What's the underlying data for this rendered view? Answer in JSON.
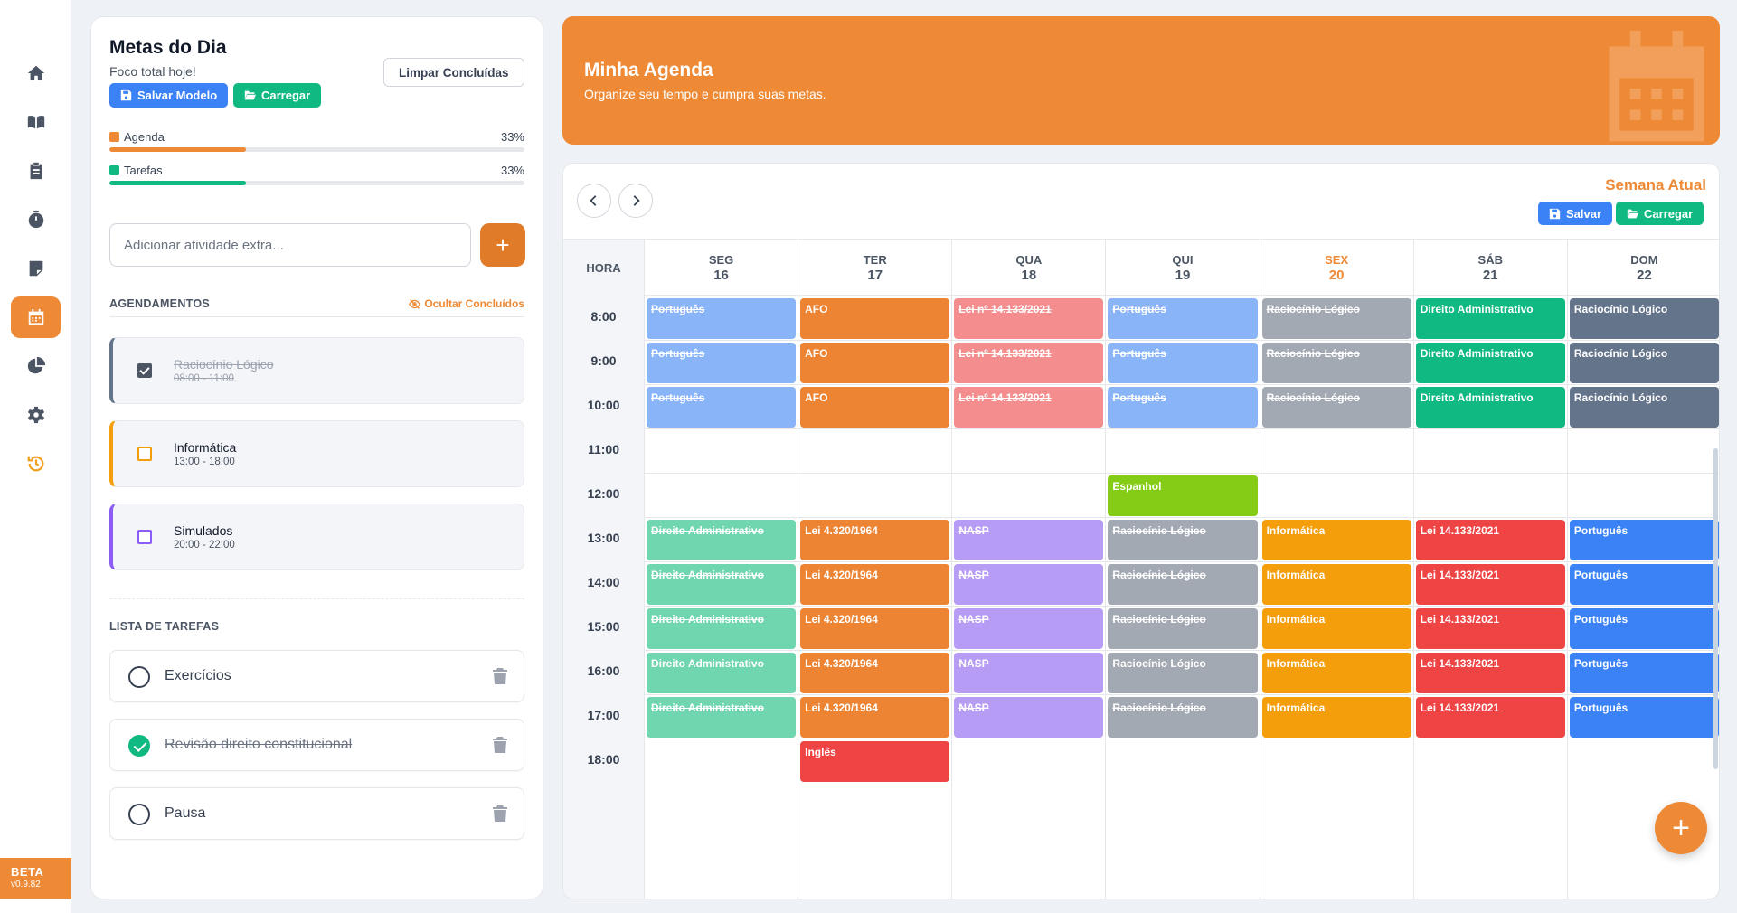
{
  "colors": {
    "accent": "#ee8a36",
    "blue": "#3b82f6",
    "green": "#10b981"
  },
  "sidebar": {
    "items": [
      {
        "name": "home",
        "icon": "home-icon"
      },
      {
        "name": "book",
        "icon": "book-icon"
      },
      {
        "name": "clipboard",
        "icon": "clipboard-icon"
      },
      {
        "name": "stopwatch",
        "icon": "stopwatch-icon"
      },
      {
        "name": "note",
        "icon": "note-icon"
      },
      {
        "name": "calendar",
        "icon": "calendar-icon",
        "active": true
      },
      {
        "name": "chart",
        "icon": "pie-chart-icon"
      },
      {
        "name": "settings",
        "icon": "gear-icon"
      },
      {
        "name": "history",
        "icon": "history-icon"
      }
    ],
    "beta_label": "BETA",
    "version": "v0.9.82"
  },
  "goals": {
    "title": "Metas do Dia",
    "subtitle": "Foco total hoje!",
    "save_model_label": "Salvar Modelo",
    "load_label": "Carregar",
    "clear_done_label": "Limpar Concluídas",
    "progress": [
      {
        "label": "Agenda",
        "percent_text": "33%",
        "percent": 33,
        "color": "#ee8a36"
      },
      {
        "label": "Tarefas",
        "percent_text": "33%",
        "percent": 33,
        "color": "#10b981"
      }
    ],
    "extra_placeholder": "Adicionar atividade extra...",
    "appointments_title": "AGENDAMENTOS",
    "hide_done_label": "Ocultar Concluídos",
    "appointments": [
      {
        "name": "Raciocínio Lógico",
        "time": "08:00 - 11:00",
        "done": true,
        "color": "#64748b"
      },
      {
        "name": "Informática",
        "time": "13:00 - 18:00",
        "done": false,
        "color": "#f59e0b"
      },
      {
        "name": "Simulados",
        "time": "20:00 - 22:00",
        "done": false,
        "color": "#8b5cf6"
      }
    ],
    "tasks_title": "LISTA DE TAREFAS",
    "tasks": [
      {
        "name": "Exercícios",
        "done": false
      },
      {
        "name": "Revisão direito constitucional",
        "done": true
      },
      {
        "name": "Pausa",
        "done": false
      }
    ]
  },
  "banner": {
    "title": "Minha Agenda",
    "subtitle": "Organize seu tempo e cumpra suas metas."
  },
  "calendar": {
    "week_label": "Semana Atual",
    "save_label": "Salvar",
    "load_label": "Carregar",
    "hour_header": "HORA",
    "days": [
      {
        "name": "SEG",
        "date": "16"
      },
      {
        "name": "TER",
        "date": "17"
      },
      {
        "name": "QUA",
        "date": "18"
      },
      {
        "name": "QUI",
        "date": "19"
      },
      {
        "name": "SEX",
        "date": "20",
        "today": true
      },
      {
        "name": "SÁB",
        "date": "21"
      },
      {
        "name": "DOM",
        "date": "22"
      }
    ],
    "hours": [
      "8:00",
      "9:00",
      "10:00",
      "11:00",
      "12:00",
      "13:00",
      "14:00",
      "15:00",
      "16:00",
      "17:00",
      "18:00"
    ],
    "events": [
      {
        "day": 0,
        "start": 0,
        "span": 3,
        "label": "Português",
        "color": "#8ab4f8",
        "done": true
      },
      {
        "day": 1,
        "start": 0,
        "span": 3,
        "label": "AFO",
        "color": "#ed8433",
        "done": false
      },
      {
        "day": 2,
        "start": 0,
        "span": 3,
        "label": "Lei nº 14.133/2021",
        "color": "#f48d8d",
        "done": true
      },
      {
        "day": 3,
        "start": 0,
        "span": 3,
        "label": "Português",
        "color": "#8ab4f8",
        "done": true
      },
      {
        "day": 4,
        "start": 0,
        "span": 3,
        "label": "Raciocínio Lógico",
        "color": "#a3a9b3",
        "done": true
      },
      {
        "day": 5,
        "start": 0,
        "span": 3,
        "label": "Direito Administrativo",
        "color": "#10b981",
        "done": false
      },
      {
        "day": 6,
        "start": 0,
        "span": 3,
        "label": "Raciocínio Lógico",
        "color": "#64748b",
        "done": false
      },
      {
        "day": 3,
        "start": 4,
        "span": 1,
        "label": "Espanhol",
        "color": "#84cc16",
        "done": false
      },
      {
        "day": 0,
        "start": 5,
        "span": 5,
        "label": "Direito Administrativo",
        "color": "#6fd6b0",
        "done": true
      },
      {
        "day": 1,
        "start": 5,
        "span": 5,
        "label": "Lei 4.320/1964",
        "color": "#ed8433",
        "done": false
      },
      {
        "day": 2,
        "start": 5,
        "span": 5,
        "label": "NASP",
        "color": "#b79cf5",
        "done": true
      },
      {
        "day": 3,
        "start": 5,
        "span": 5,
        "label": "Raciocínio Lógico",
        "color": "#a3a9b3",
        "done": true
      },
      {
        "day": 4,
        "start": 5,
        "span": 5,
        "label": "Informática",
        "color": "#f59e0b",
        "done": false
      },
      {
        "day": 5,
        "start": 5,
        "span": 5,
        "label": "Lei 14.133/2021",
        "color": "#ef4444",
        "done": false
      },
      {
        "day": 6,
        "start": 5,
        "span": 5,
        "label": "Português",
        "color": "#3b82f6",
        "done": false
      },
      {
        "day": 1,
        "start": 10,
        "span": 1,
        "label": "Inglês",
        "color": "#ef4444",
        "done": false
      }
    ]
  }
}
